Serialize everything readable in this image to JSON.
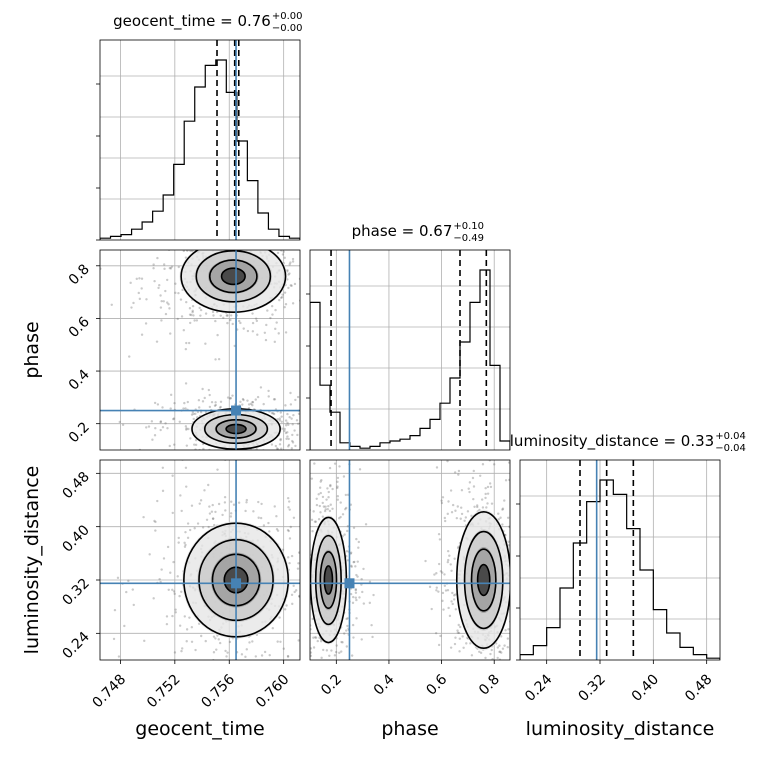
{
  "chart_data": {
    "type": "corner",
    "parameters": [
      "geocent_time",
      "phase",
      "luminosity_distance"
    ],
    "axis_labels": {
      "x": [
        "geocent_time",
        "phase",
        "luminosity_distance"
      ],
      "y": [
        "phase",
        "luminosity_distance"
      ]
    },
    "titles": [
      {
        "name": "geocent_time",
        "value": "0.76",
        "plus": "+0.00",
        "minus": "−0.00"
      },
      {
        "name": "phase",
        "value": "0.67",
        "plus": "+0.10",
        "minus": "−0.49"
      },
      {
        "name": "luminosity_distance",
        "value": "0.33",
        "plus": "+0.04",
        "minus": "−0.04"
      }
    ],
    "ranges": {
      "geocent_time": [
        0.7465,
        0.7612
      ],
      "phase": [
        0.1,
        0.86
      ],
      "luminosity_distance": [
        0.2,
        0.5
      ]
    },
    "ticks": {
      "geocent_time": [
        {
          "value": 0.748,
          "label": "0.748"
        },
        {
          "value": 0.752,
          "label": "0.752"
        },
        {
          "value": 0.756,
          "label": "0.756"
        },
        {
          "value": 0.76,
          "label": "0.760"
        }
      ],
      "phase": [
        {
          "value": 0.2,
          "label": "0.2"
        },
        {
          "value": 0.4,
          "label": "0.4"
        },
        {
          "value": 0.6,
          "label": "0.6"
        },
        {
          "value": 0.8,
          "label": "0.8"
        }
      ],
      "luminosity_distance": [
        {
          "value": 0.24,
          "label": "0.24"
        },
        {
          "value": 0.32,
          "label": "0.32"
        },
        {
          "value": 0.4,
          "label": "0.40"
        },
        {
          "value": 0.48,
          "label": "0.48"
        }
      ]
    },
    "truths": {
      "geocent_time": 0.7565,
      "phase": 0.25,
      "luminosity_distance": 0.315
    },
    "quantiles": {
      "geocent_time": [
        0.7551,
        0.7564,
        0.7567
      ],
      "phase": [
        0.18,
        0.67,
        0.77
      ],
      "luminosity_distance": [
        0.29,
        0.33,
        0.37
      ]
    },
    "histograms": {
      "geocent_time": [
        0.01,
        0.02,
        0.03,
        0.06,
        0.1,
        0.16,
        0.25,
        0.42,
        0.66,
        0.85,
        0.97,
        1.0,
        0.82,
        0.55,
        0.33,
        0.15,
        0.06,
        0.02,
        0.01
      ],
      "phase": [
        0.82,
        0.36,
        0.21,
        0.04,
        0.02,
        0.01,
        0.02,
        0.04,
        0.05,
        0.06,
        0.08,
        0.12,
        0.17,
        0.26,
        0.4,
        0.6,
        0.82,
        1.0,
        0.47,
        0.05
      ],
      "luminosity_distance": [
        0.03,
        0.08,
        0.18,
        0.4,
        0.65,
        0.88,
        1.0,
        0.92,
        0.73,
        0.5,
        0.28,
        0.15,
        0.07,
        0.03,
        0.01
      ]
    },
    "contour_modes": {
      "geocent_time-phase": [
        {
          "x": 0.7563,
          "y": 0.76,
          "w": 0.0045,
          "h": 0.16
        },
        {
          "x": 0.7565,
          "y": 0.18,
          "w": 0.0038,
          "h": 0.09
        }
      ],
      "geocent_time-luminosity_distance": [
        {
          "x": 0.7565,
          "y": 0.32,
          "w": 0.0045,
          "h": 0.1
        }
      ],
      "phase-luminosity_distance": [
        {
          "x": 0.17,
          "y": 0.32,
          "w": 0.08,
          "h": 0.11
        },
        {
          "x": 0.76,
          "y": 0.32,
          "w": 0.12,
          "h": 0.12
        }
      ]
    },
    "grid": true,
    "truth_color": "#4682b4",
    "hist_color": "#000000"
  }
}
